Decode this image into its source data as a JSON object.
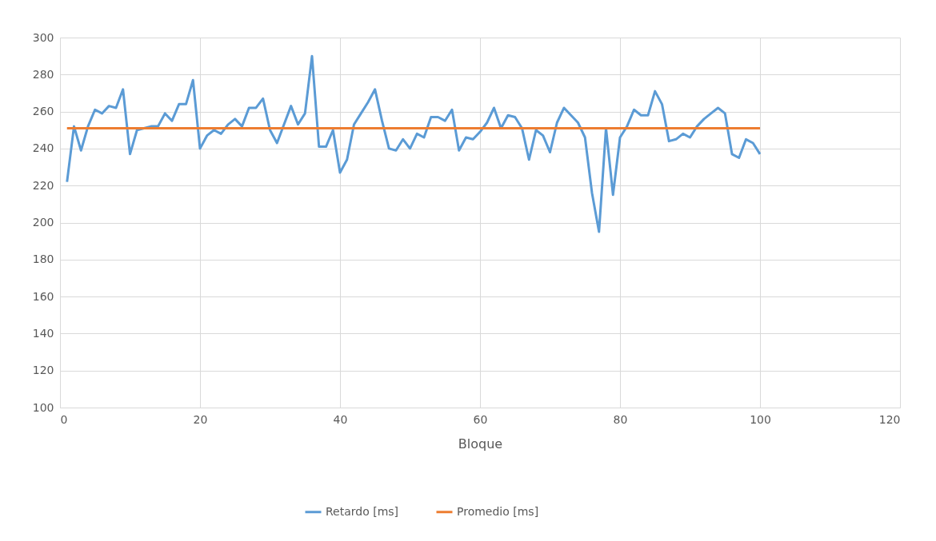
{
  "chart_data": {
    "type": "line",
    "xlabel": "Bloque",
    "xlim": [
      0,
      120
    ],
    "xticks": [
      0,
      20,
      40,
      60,
      80,
      100,
      120
    ],
    "ylim": [
      100,
      300
    ],
    "yticks": [
      100,
      120,
      140,
      160,
      180,
      200,
      220,
      240,
      260,
      280,
      300
    ],
    "grid": true,
    "legend": "bottom",
    "marker": "none",
    "line_style": "solid",
    "series": [
      {
        "name": "Retardo [ms]",
        "color": "#5b9bd5",
        "x": [
          1,
          2,
          3,
          4,
          5,
          6,
          7,
          8,
          9,
          10,
          11,
          12,
          13,
          14,
          15,
          16,
          17,
          18,
          19,
          20,
          21,
          22,
          23,
          24,
          25,
          26,
          27,
          28,
          29,
          30,
          31,
          32,
          33,
          34,
          35,
          36,
          37,
          38,
          39,
          40,
          41,
          42,
          43,
          44,
          45,
          46,
          47,
          48,
          49,
          50,
          51,
          52,
          53,
          54,
          55,
          56,
          57,
          58,
          59,
          60,
          61,
          62,
          63,
          64,
          65,
          66,
          67,
          68,
          69,
          70,
          71,
          72,
          73,
          74,
          75,
          76,
          77,
          78,
          79,
          80,
          81,
          82,
          83,
          84,
          85,
          86,
          87,
          88,
          89,
          90,
          91,
          92,
          93,
          94,
          95,
          96,
          97,
          98,
          99,
          100
        ],
        "values": [
          222,
          252,
          239,
          252,
          261,
          259,
          263,
          262,
          272,
          237,
          250,
          251,
          252,
          252,
          259,
          255,
          264,
          264,
          277,
          240,
          247,
          250,
          248,
          253,
          256,
          252,
          262,
          262,
          267,
          250,
          243,
          253,
          263,
          253,
          259,
          290,
          241,
          241,
          250,
          227,
          234,
          253,
          259,
          265,
          272,
          255,
          240,
          239,
          245,
          240,
          248,
          246,
          257,
          257,
          255,
          261,
          239,
          246,
          245,
          249,
          254,
          262,
          251,
          258,
          257,
          251,
          234,
          250,
          247,
          238,
          254,
          262,
          258,
          254,
          246,
          216,
          195,
          251,
          215,
          246,
          252,
          261,
          258,
          258,
          271,
          264,
          244,
          245,
          248,
          246,
          252,
          256,
          259,
          262,
          259,
          237,
          235,
          245,
          243,
          237
        ]
      },
      {
        "name": "Promedio [ms]",
        "color": "#ed7d31",
        "x": [
          1,
          100
        ],
        "values": [
          251,
          251
        ]
      }
    ]
  }
}
